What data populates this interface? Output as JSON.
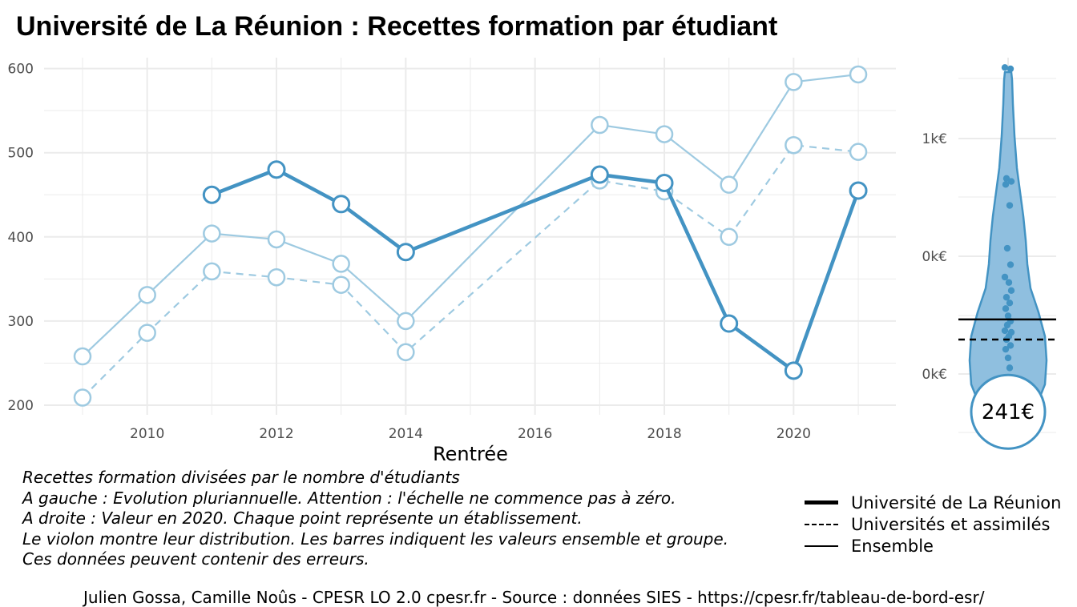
{
  "title": "Université de La Réunion  :  Recettes formation par étudiant",
  "colors": {
    "main": "#4393c3",
    "light": "#9ecae1",
    "grid": "#ebebeb",
    "violin_fill": "#8fbfdf"
  },
  "chart_data": [
    {
      "type": "line",
      "xlabel": "Rentrée",
      "ylabel": "",
      "xlim": [
        2008.8,
        2021.5
      ],
      "ylim": [
        190,
        610
      ],
      "x_ticks": [
        2010,
        2012,
        2014,
        2016,
        2018,
        2020
      ],
      "y_ticks": [
        200,
        300,
        400,
        500,
        600
      ],
      "grid": true,
      "series": [
        {
          "name": "Université de La Réunion",
          "style": "thick",
          "x": [
            2011,
            2012,
            2013,
            2014,
            2017,
            2018,
            2019,
            2020,
            2021
          ],
          "y": [
            450,
            480,
            439,
            382,
            474,
            464,
            297,
            241,
            455
          ]
        },
        {
          "name": "Universités et assimilés",
          "style": "dashed",
          "x": [
            2009,
            2010,
            2011,
            2012,
            2013,
            2014,
            2017,
            2018,
            2019,
            2020,
            2021
          ],
          "y": [
            209,
            286,
            359,
            352,
            343,
            263,
            467,
            454,
            400,
            509,
            501
          ]
        },
        {
          "name": "Ensemble",
          "style": "thin",
          "x": [
            2009,
            2010,
            2011,
            2012,
            2013,
            2014,
            2017,
            2018,
            2019,
            2020,
            2021
          ],
          "y": [
            258,
            331,
            404,
            397,
            368,
            300,
            533,
            522,
            462,
            584,
            593
          ]
        }
      ]
    },
    {
      "type": "violin",
      "year": 2020,
      "y_tick_labels": [
        "0k€",
        "0k€",
        "1k€"
      ],
      "highlight_label": "241€",
      "highlight_value": 241,
      "ensemble_value": 584,
      "group_value": 509,
      "points": [
        1519,
        1514,
        1107,
        1096,
        1085,
        1007,
        848,
        787,
        741,
        721,
        691,
        666,
        645,
        624,
        597,
        577,
        563,
        542,
        536,
        521,
        509,
        487,
        473,
        441,
        404,
        364,
        332,
        312,
        290,
        266,
        246,
        244,
        243,
        240,
        238,
        237,
        236
      ]
    }
  ],
  "caption_lines": [
    "Recettes formation divisées par le nombre d'étudiants",
    "A gauche : Evolution pluriannuelle. Attention : l'échelle ne commence pas à zéro.",
    "A droite : Valeur en 2020. Chaque point représente un établissement.",
    "Le violon montre leur distribution. Les barres indiquent les valeurs ensemble et groupe.",
    "Ces données peuvent contenir des erreurs."
  ],
  "legend": [
    {
      "label": "Université de La Réunion",
      "style": "thick"
    },
    {
      "label": "Universités et assimilés",
      "style": "dashed"
    },
    {
      "label": "Ensemble",
      "style": "thin"
    }
  ],
  "footer": "Julien Gossa, Camille Noûs - CPESR LO 2.0 cpesr.fr - Source : données SIES - https://cpesr.fr/tableau-de-bord-esr/"
}
